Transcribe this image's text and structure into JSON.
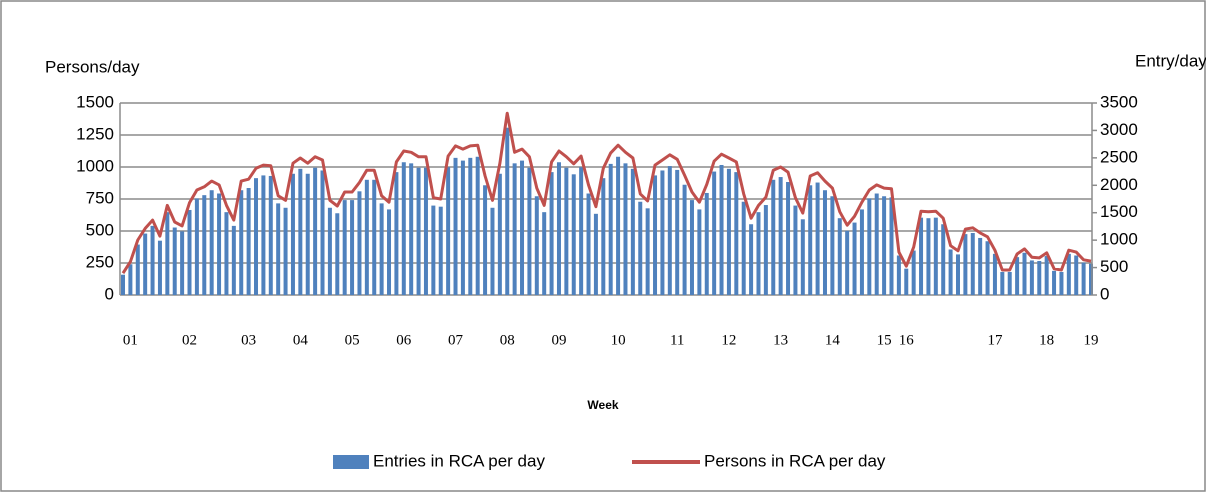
{
  "chart_data": {
    "type": "bar-line",
    "y_label": "Persons/day",
    "y2_label": "Entry/day",
    "x_label": "Week",
    "categories": [
      null,
      "01",
      null,
      null,
      null,
      null,
      null,
      null,
      null,
      "02",
      null,
      null,
      null,
      null,
      null,
      null,
      null,
      "03",
      null,
      null,
      null,
      null,
      null,
      null,
      "04",
      null,
      null,
      null,
      null,
      null,
      null,
      "05",
      null,
      null,
      null,
      null,
      null,
      null,
      "06",
      null,
      null,
      null,
      null,
      null,
      null,
      "07",
      null,
      null,
      null,
      null,
      null,
      null,
      "08",
      null,
      null,
      null,
      null,
      null,
      null,
      "09",
      null,
      null,
      null,
      null,
      null,
      null,
      null,
      "10",
      null,
      null,
      null,
      null,
      null,
      null,
      null,
      "11",
      null,
      null,
      null,
      null,
      null,
      null,
      "12",
      null,
      null,
      null,
      null,
      null,
      null,
      "13",
      null,
      null,
      null,
      null,
      null,
      null,
      "14",
      null,
      null,
      null,
      null,
      null,
      null,
      "15",
      null,
      null,
      "16",
      null,
      null,
      null,
      null,
      null,
      null,
      null,
      null,
      null,
      null,
      null,
      "17",
      null,
      null,
      null,
      null,
      null,
      null,
      "18",
      null,
      null,
      null,
      null,
      null,
      "19"
    ],
    "series": [
      {
        "name": "Entries in RCA per day",
        "kind": "bar",
        "axis": "y2",
        "color": "#4f81bd",
        "values": [
          370,
          560,
          920,
          1120,
          1260,
          990,
          1510,
          1230,
          1160,
          1550,
          1760,
          1820,
          1910,
          1850,
          1510,
          1260,
          1910,
          1950,
          2130,
          2180,
          2170,
          1670,
          1590,
          2210,
          2300,
          2210,
          2320,
          2270,
          1590,
          1490,
          1730,
          1730,
          1890,
          2100,
          2100,
          1670,
          1560,
          2240,
          2420,
          2400,
          2320,
          2320,
          1630,
          1610,
          2330,
          2500,
          2450,
          2500,
          2520,
          2000,
          1590,
          2210,
          3050,
          2400,
          2450,
          2320,
          1800,
          1510,
          2240,
          2420,
          2320,
          2200,
          2330,
          1850,
          1480,
          2130,
          2390,
          2520,
          2400,
          2300,
          1700,
          1580,
          2180,
          2270,
          2350,
          2280,
          2010,
          1730,
          1560,
          1860,
          2250,
          2370,
          2300,
          2240,
          1700,
          1290,
          1510,
          1640,
          2100,
          2150,
          2060,
          1630,
          1380,
          2000,
          2050,
          1910,
          1800,
          1400,
          1170,
          1320,
          1560,
          1760,
          1850,
          1800,
          1780,
          720,
          480,
          810,
          1410,
          1400,
          1410,
          1290,
          830,
          740,
          1110,
          1130,
          1040,
          980,
          750,
          420,
          420,
          690,
          770,
          630,
          620,
          710,
          440,
          420,
          750,
          720,
          590,
          570
        ]
      },
      {
        "name": "Persons in RCA per day",
        "kind": "line",
        "axis": "y",
        "color": "#c0504d",
        "values": [
          170,
          260,
          430,
          520,
          585,
          460,
          700,
          570,
          540,
          720,
          820,
          845,
          890,
          860,
          700,
          585,
          890,
          905,
          990,
          1015,
          1010,
          775,
          740,
          1030,
          1070,
          1030,
          1080,
          1055,
          740,
          695,
          805,
          805,
          880,
          975,
          975,
          775,
          725,
          1040,
          1125,
          1115,
          1080,
          1080,
          760,
          750,
          1085,
          1165,
          1140,
          1165,
          1170,
          930,
          740,
          1030,
          1420,
          1115,
          1140,
          1080,
          835,
          700,
          1040,
          1125,
          1080,
          1025,
          1085,
          860,
          690,
          990,
          1110,
          1170,
          1115,
          1070,
          790,
          735,
          1015,
          1055,
          1095,
          1060,
          935,
          805,
          725,
          865,
          1045,
          1100,
          1070,
          1040,
          790,
          600,
          700,
          765,
          975,
          1000,
          960,
          760,
          640,
          930,
          955,
          890,
          835,
          650,
          545,
          615,
          725,
          820,
          860,
          835,
          830,
          335,
          225,
          375,
          655,
          650,
          655,
          600,
          385,
          345,
          515,
          525,
          485,
          455,
          350,
          195,
          195,
          320,
          360,
          295,
          290,
          330,
          205,
          195,
          350,
          335,
          275,
          265
        ]
      }
    ],
    "ylim": [
      0,
      1500
    ],
    "yticks": [
      0,
      250,
      500,
      750,
      1000,
      1250,
      1500
    ],
    "y2lim": [
      0,
      3500
    ],
    "y2ticks": [
      0,
      500,
      1000,
      1500,
      2000,
      2500,
      3000,
      3500
    ],
    "grid": true
  }
}
